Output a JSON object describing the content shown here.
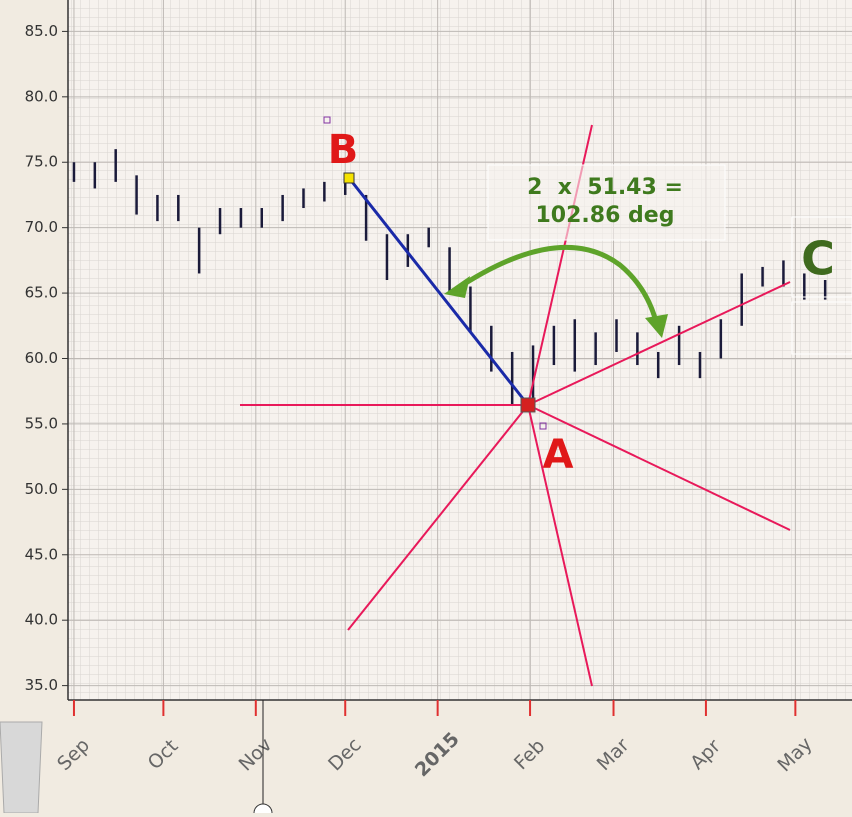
{
  "chart_data": {
    "type": "range-bar",
    "color": "#1a1a3a",
    "grid": true,
    "xlim": [
      -2,
      261
    ],
    "ylim": [
      33.9,
      87.4
    ],
    "yticks": [
      {
        "value": 35,
        "label": "35.0"
      },
      {
        "value": 40,
        "label": "40.0"
      },
      {
        "value": 45,
        "label": "45.0"
      },
      {
        "value": 50,
        "label": "50.0"
      },
      {
        "value": 55,
        "label": "55.0"
      },
      {
        "value": 60,
        "label": "60.0"
      },
      {
        "value": 65,
        "label": "65.0"
      },
      {
        "value": 70,
        "label": "70.0"
      },
      {
        "value": 75,
        "label": "75.0"
      },
      {
        "value": 80,
        "label": "80.0"
      },
      {
        "value": 85,
        "label": "85.0"
      }
    ],
    "xticks": [
      {
        "value": 0,
        "label": "Sep"
      },
      {
        "value": 30,
        "label": "Oct"
      },
      {
        "value": 61,
        "label": "Nov"
      },
      {
        "value": 91,
        "label": "Dec"
      },
      {
        "value": 122,
        "label": "2015"
      },
      {
        "value": 153,
        "label": "Feb"
      },
      {
        "value": 181,
        "label": "Mar"
      },
      {
        "value": 212,
        "label": "Apr"
      },
      {
        "value": 242,
        "label": "May"
      }
    ],
    "x": [
      0,
      7,
      14,
      21,
      28,
      35,
      42,
      49,
      56,
      63,
      70,
      77,
      84,
      91,
      98,
      105,
      112,
      119,
      126,
      133,
      140,
      147,
      154,
      161,
      168,
      175,
      182,
      189,
      196,
      203,
      210,
      217,
      224,
      231,
      238,
      245,
      252
    ],
    "high": [
      75,
      75,
      76,
      74,
      72.5,
      72.5,
      70,
      71.5,
      71.5,
      71.5,
      72.5,
      73,
      73.5,
      74,
      72.5,
      69.5,
      69.5,
      70,
      68.5,
      65.5,
      62.5,
      60.5,
      61,
      62.5,
      63,
      62,
      63,
      62,
      60.5,
      62.5,
      60.5,
      63,
      66.5,
      67,
      67.5,
      66.5,
      66
    ],
    "low": [
      73.5,
      73,
      73.5,
      71,
      70.5,
      70.5,
      66.5,
      69.5,
      70,
      70,
      70.5,
      71.5,
      72,
      72.5,
      69,
      66,
      67,
      68.5,
      65,
      62,
      59,
      56.5,
      57,
      59.5,
      59,
      59.5,
      60.5,
      59.5,
      58.5,
      59.5,
      58.5,
      60,
      62.5,
      65.5,
      65.5,
      64.5,
      64.5
    ],
    "annotations": {
      "point_b": "B",
      "point_a": "A",
      "point_c": "C",
      "angle_line1": "2  x  51.43 =",
      "angle_line2": "102.86 deg"
    }
  }
}
